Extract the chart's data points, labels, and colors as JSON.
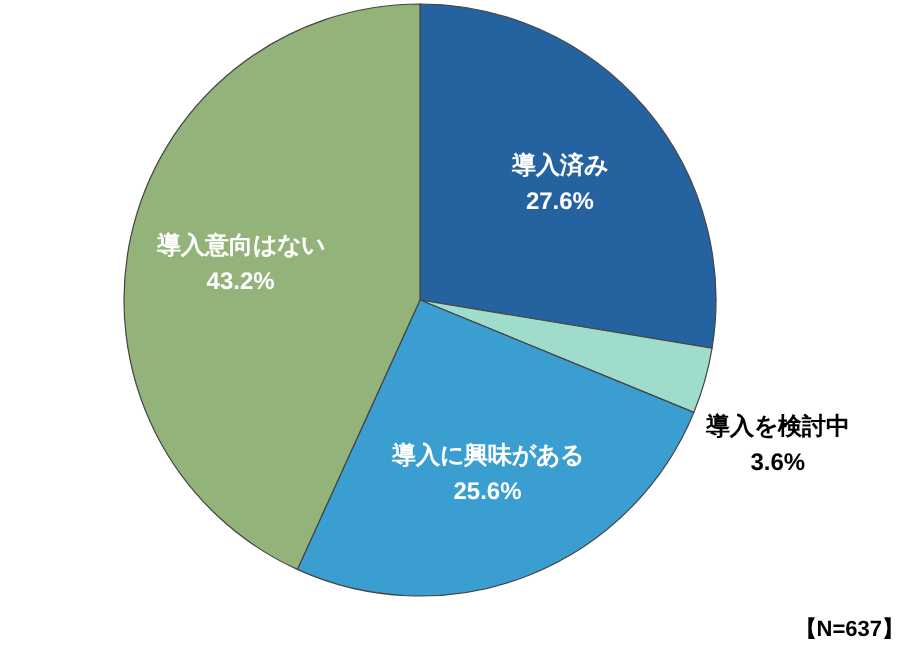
{
  "chart_data": {
    "type": "pie",
    "categories": [
      "導入済み",
      "導入を検討中",
      "導入に興味がある",
      "導入意向はない"
    ],
    "values": [
      27.6,
      3.6,
      25.6,
      43.2
    ],
    "value_labels": [
      "27.6%",
      "3.6%",
      "25.6%",
      "43.2%"
    ],
    "colors": [
      "#2563a0",
      "#a0dccc",
      "#3a9fd0",
      "#94b37a"
    ],
    "annotations": [
      "【N=637】"
    ]
  }
}
